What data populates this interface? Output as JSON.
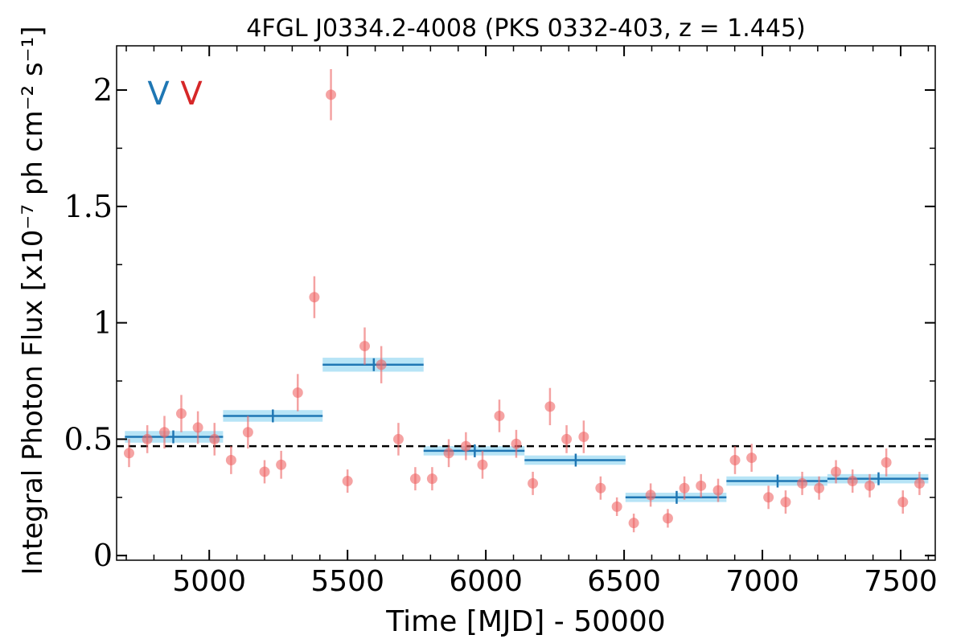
{
  "chart_data": {
    "type": "scatter",
    "title": "4FGL J0334.2-4008 (PKS 0332-403, z = 1.445)",
    "xlabel": "Time [MJD] - 50000",
    "ylabel": "Integral Photon Flux [x10⁻⁷ ph cm⁻² s⁻¹]",
    "xlim": [
      4665,
      7625
    ],
    "ylim": [
      -0.02,
      2.19
    ],
    "xticks": [
      5000,
      5500,
      6000,
      6500,
      7000,
      7500
    ],
    "xtick_labels": [
      "5000",
      "5500",
      "6000",
      "6500",
      "7000",
      "7500"
    ],
    "yticks": [
      0,
      0.5,
      1,
      1.5,
      2
    ],
    "ytick_labels": [
      "0",
      "0.5",
      "1",
      "1.5",
      "2"
    ],
    "grid": false,
    "mean_flux": 0.47,
    "colors": {
      "points": "#ee6666",
      "bins": "#1f77b4",
      "bin_band": "#aadff5",
      "mean_line": "#000000",
      "marker_blue": "#1f77b4",
      "marker_red": "#d62728"
    },
    "markers": [
      {
        "label": "V",
        "color": "#1f77b4"
      },
      {
        "label": "V",
        "color": "#d62728"
      }
    ],
    "series": [
      {
        "type": "points",
        "x": [
          4710,
          4776,
          4838,
          4899,
          4959,
          5019,
          5079,
          5140,
          5200,
          5260,
          5320,
          5380,
          5440,
          5500,
          5562,
          5622,
          5684,
          5745,
          5806,
          5866,
          5928,
          5988,
          6049,
          6110,
          6170,
          6232,
          6292,
          6354,
          6415,
          6474,
          6535,
          6596,
          6658,
          6718,
          6778,
          6840,
          6901,
          6961,
          7022,
          7084,
          7144,
          7205,
          7266,
          7326,
          7388,
          7448,
          7508,
          7568
        ],
        "y": [
          0.44,
          0.5,
          0.53,
          0.61,
          0.55,
          0.5,
          0.41,
          0.53,
          0.36,
          0.39,
          0.7,
          1.11,
          1.98,
          0.32,
          0.9,
          0.82,
          0.5,
          0.33,
          0.33,
          0.44,
          0.47,
          0.39,
          0.6,
          0.48,
          0.31,
          0.64,
          0.5,
          0.51,
          0.29,
          0.21,
          0.14,
          0.26,
          0.16,
          0.29,
          0.3,
          0.28,
          0.41,
          0.42,
          0.25,
          0.23,
          0.31,
          0.29,
          0.36,
          0.32,
          0.3,
          0.4,
          0.23,
          0.31
        ],
        "err": [
          0.06,
          0.06,
          0.07,
          0.08,
          0.07,
          0.07,
          0.06,
          0.07,
          0.05,
          0.06,
          0.08,
          0.09,
          0.11,
          0.05,
          0.08,
          0.08,
          0.07,
          0.05,
          0.05,
          0.06,
          0.06,
          0.06,
          0.07,
          0.06,
          0.05,
          0.08,
          0.06,
          0.07,
          0.05,
          0.04,
          0.04,
          0.05,
          0.04,
          0.05,
          0.05,
          0.05,
          0.06,
          0.06,
          0.05,
          0.05,
          0.05,
          0.05,
          0.05,
          0.05,
          0.05,
          0.06,
          0.05,
          0.05
        ]
      },
      {
        "type": "bins",
        "bins": [
          {
            "x0": 4695,
            "x1": 5050,
            "y": 0.51,
            "err": 0.025,
            "center": 4870
          },
          {
            "x0": 5050,
            "x1": 5410,
            "y": 0.6,
            "err": 0.025,
            "center": 5230
          },
          {
            "x0": 5410,
            "x1": 5775,
            "y": 0.82,
            "err": 0.03,
            "center": 5595
          },
          {
            "x0": 5775,
            "x1": 6140,
            "y": 0.45,
            "err": 0.02,
            "center": 5960
          },
          {
            "x0": 6140,
            "x1": 6505,
            "y": 0.41,
            "err": 0.02,
            "center": 6325
          },
          {
            "x0": 6505,
            "x1": 6870,
            "y": 0.25,
            "err": 0.02,
            "center": 6690
          },
          {
            "x0": 6870,
            "x1": 7235,
            "y": 0.32,
            "err": 0.02,
            "center": 7055
          },
          {
            "x0": 7235,
            "x1": 7600,
            "y": 0.33,
            "err": 0.02,
            "center": 7420
          }
        ]
      }
    ]
  }
}
